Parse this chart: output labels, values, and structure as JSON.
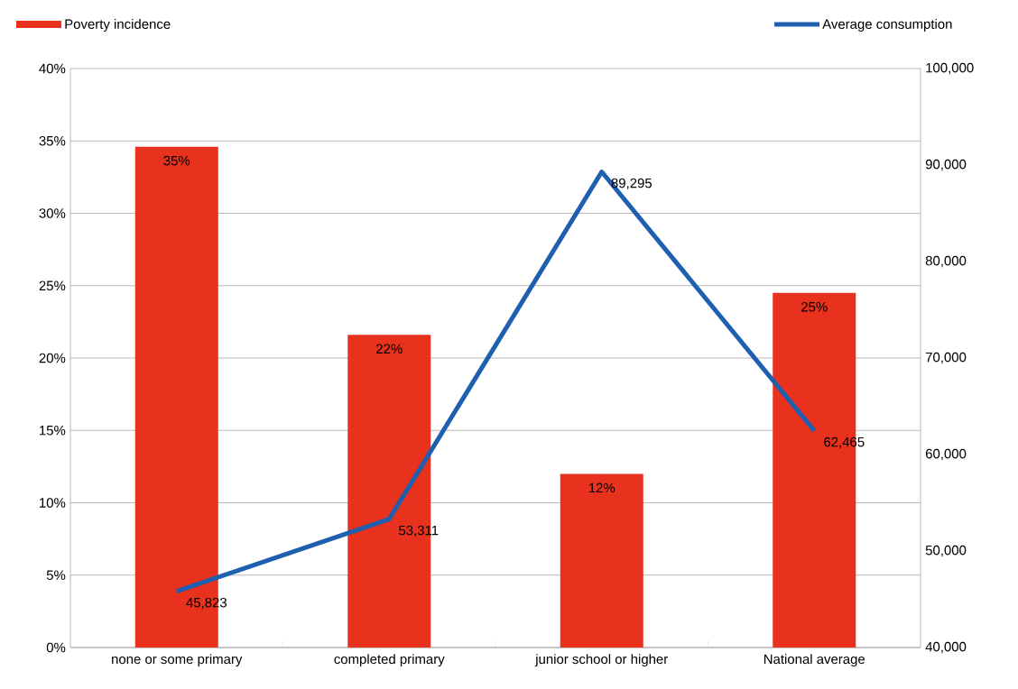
{
  "chart_data": {
    "type": "bar",
    "categories": [
      "none or some primary",
      "completed primary",
      "junior school or higher",
      "National average"
    ],
    "series": [
      {
        "name": "Poverty incidence",
        "color": "#e8321e",
        "values": [
          34.6,
          21.6,
          12.0,
          24.5
        ],
        "value_labels": [
          "35%",
          "22%",
          "12%",
          "25%"
        ]
      },
      {
        "name": "Average consumption",
        "type": "line",
        "axis": "y2",
        "color": "#1f5fb0",
        "values": [
          45823,
          53311,
          89295,
          62465
        ],
        "value_labels": [
          "45,823",
          "53,311",
          "89,295",
          "62,465"
        ]
      }
    ],
    "ylim": [
      0,
      40
    ],
    "yticks": [
      {
        "value": 0,
        "label": "0%"
      },
      {
        "value": 5,
        "label": "5%"
      },
      {
        "value": 10,
        "label": "10%"
      },
      {
        "value": 15,
        "label": "15%"
      },
      {
        "value": 20,
        "label": "20%"
      },
      {
        "value": 25,
        "label": "25%"
      },
      {
        "value": 30,
        "label": "30%"
      },
      {
        "value": 35,
        "label": "35%"
      },
      {
        "value": 40,
        "label": "40%"
      }
    ],
    "y2lim": [
      40000,
      100000
    ],
    "y2ticks": [
      {
        "value": 40000,
        "label": "40,000"
      },
      {
        "value": 50000,
        "label": "50,000"
      },
      {
        "value": 60000,
        "label": "60,000"
      },
      {
        "value": 70000,
        "label": "70,000"
      },
      {
        "value": 80000,
        "label": "80,000"
      },
      {
        "value": 90000,
        "label": "90,000"
      },
      {
        "value": 100000,
        "label": "100,000"
      }
    ],
    "grid": "y",
    "legend": "top",
    "marker": "none",
    "line_style": "solid"
  }
}
